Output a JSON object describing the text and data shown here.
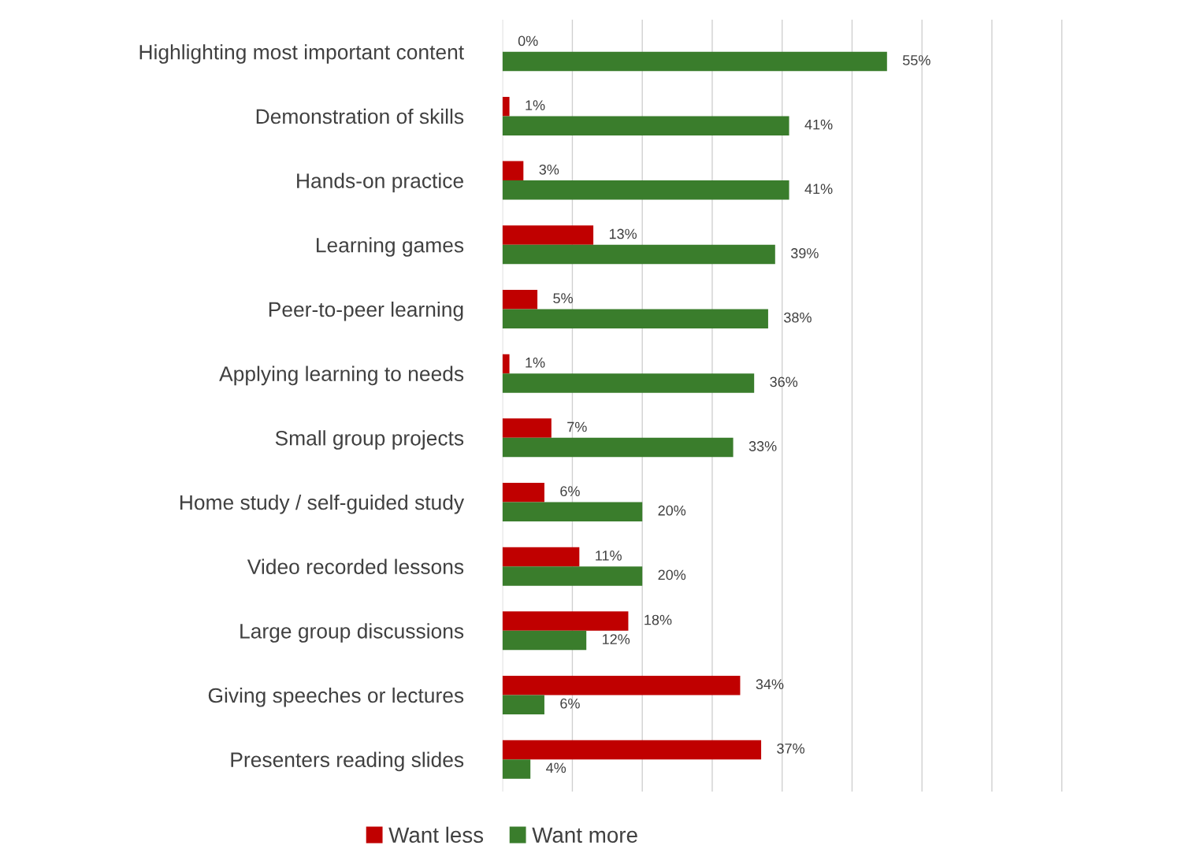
{
  "chart_data": {
    "type": "bar",
    "orientation": "horizontal",
    "categories": [
      "Highlighting most important content",
      "Demonstration of skills",
      "Hands-on practice",
      "Learning games",
      "Peer-to-peer learning",
      "Applying learning to needs",
      "Small group projects",
      "Home study / self-guided study",
      "Video recorded lessons",
      "Large group discussions",
      "Giving speeches or lectures",
      "Presenters reading slides"
    ],
    "series": [
      {
        "name": "Want less",
        "color": "#c00000",
        "values": [
          0,
          1,
          3,
          13,
          5,
          1,
          7,
          6,
          11,
          18,
          34,
          37
        ],
        "value_labels": [
          "0%",
          "1%",
          "3%",
          "13%",
          "5%",
          "1%",
          "7%",
          "6%",
          "11%",
          "18%",
          "34%",
          "37%"
        ]
      },
      {
        "name": "Want more",
        "color": "#3a7d2c",
        "values": [
          55,
          41,
          41,
          39,
          38,
          36,
          33,
          20,
          20,
          12,
          6,
          4
        ],
        "value_labels": [
          "55%",
          "41%",
          "41%",
          "39%",
          "38%",
          "36%",
          "33%",
          "20%",
          "20%",
          "12%",
          "6%",
          "4%"
        ]
      }
    ],
    "tick_labels": "y",
    "grid": "x",
    "legend": "bottom"
  }
}
